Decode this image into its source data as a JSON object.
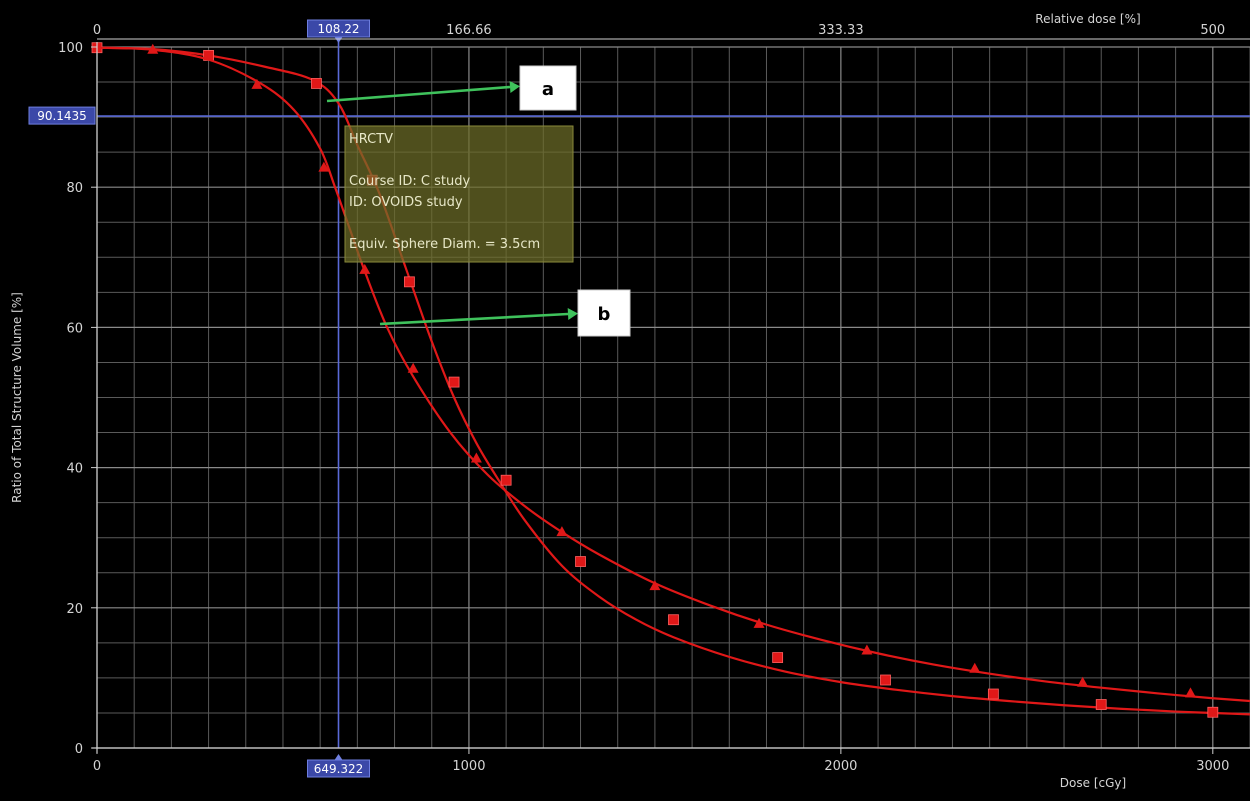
{
  "chart_data": {
    "type": "line",
    "xlabel": "Dose [cGy]",
    "ylabel": "Ratio of Total Structure Volume [%]",
    "top_axis_label": "Relative dose [%]",
    "xlim": [
      0,
      3100
    ],
    "ylim": [
      0,
      100
    ],
    "x_ticks": [
      0,
      1000,
      2000,
      3000
    ],
    "y_ticks": [
      0,
      20,
      40,
      60,
      80,
      100
    ],
    "top_ticks": [
      "0",
      "166.66",
      "333.33",
      "500"
    ],
    "top_tick_doses": [
      0,
      1000,
      2000,
      3000
    ],
    "grid": true,
    "cursor": {
      "x": 649.322,
      "y": 90.1435,
      "x_label": "649.322",
      "y_label": "90.1435",
      "top_label": "108.22"
    },
    "series": [
      {
        "marker": "square",
        "color": "#e01818",
        "x": [
          0,
          150,
          300,
          450,
          580,
          649,
          700,
          760,
          830,
          900,
          960,
          1020,
          1080,
          1150,
          1250,
          1350,
          1450,
          1550,
          1700,
          1850,
          2000,
          2150,
          2300,
          2450,
          2600,
          2750,
          2900,
          3050,
          3100
        ],
        "values": [
          99.9,
          99.7,
          98.8,
          97.2,
          95.3,
          92.0,
          86.0,
          79.0,
          68.5,
          58.0,
          50.0,
          43.5,
          38.2,
          32.5,
          26.0,
          21.6,
          18.3,
          15.8,
          13.0,
          10.9,
          9.4,
          8.3,
          7.4,
          6.7,
          6.1,
          5.6,
          5.2,
          4.9,
          4.8
        ],
        "markers_x": [
          0,
          300,
          590,
          740,
          840,
          960,
          1100,
          1300,
          1550,
          1830,
          2120,
          2410,
          2700,
          3000
        ],
        "markers_y": [
          99.9,
          98.8,
          94.8,
          81.0,
          66.5,
          52.2,
          38.2,
          26.6,
          18.3,
          12.9,
          9.7,
          7.7,
          6.2,
          5.1
        ]
      },
      {
        "marker": "triangle",
        "color": "#e01818",
        "x": [
          0,
          150,
          300,
          440,
          530,
          600,
          640,
          680,
          720,
          780,
          850,
          950,
          1050,
          1150,
          1250,
          1350,
          1500,
          1650,
          1800,
          1950,
          2100,
          2250,
          2400,
          2550,
          2700,
          2850,
          3000,
          3100
        ],
        "values": [
          99.9,
          99.6,
          98.2,
          94.8,
          91.0,
          85.5,
          80.0,
          74.0,
          68.0,
          60.0,
          53.0,
          45.0,
          39.0,
          34.5,
          30.8,
          27.6,
          23.5,
          20.3,
          17.6,
          15.4,
          13.5,
          11.9,
          10.6,
          9.5,
          8.6,
          7.8,
          7.1,
          6.7
        ],
        "markers_x": [
          150,
          430,
          610,
          720,
          850,
          1020,
          1250,
          1500,
          1780,
          2070,
          2360,
          2650,
          2940
        ],
        "markers_y": [
          99.6,
          94.6,
          82.8,
          68.2,
          54.1,
          41.3,
          30.8,
          23.1,
          17.7,
          13.9,
          11.3,
          9.3,
          7.8
        ]
      }
    ],
    "tooltip": {
      "lines": [
        "HRCTV",
        "",
        "Course ID: C study",
        " ID: OVOIDS study",
        "",
        "Equiv. Sphere Diam. = 3.5cm"
      ]
    },
    "callouts": [
      {
        "label": "a"
      },
      {
        "label": "b"
      }
    ]
  }
}
